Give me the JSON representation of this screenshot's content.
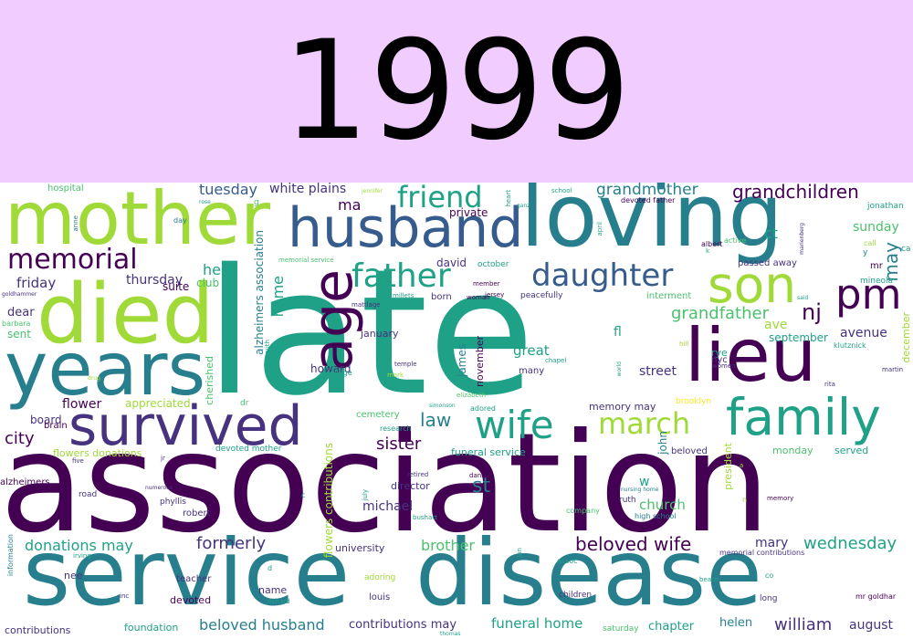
{
  "header": {
    "year": "1999",
    "background": "#f0ccff"
  },
  "cloud": {
    "colors": {
      "dark_purple": "#440154",
      "indigo": "#46327e",
      "slate_blue": "#365c8d",
      "teal_blue": "#277f8e",
      "teal": "#1fa187",
      "green": "#4ac16d",
      "yellow_green": "#a0da39",
      "yellow": "#fde725"
    },
    "words": [
      "late",
      "association",
      "service",
      "disease",
      "mother",
      "loving",
      "died",
      "years",
      "husband",
      "survived",
      "lieu",
      "family",
      "wife",
      "age",
      "son",
      "pm",
      "daughter",
      "father",
      "friend",
      "memorial",
      "march",
      "grandchildren",
      "grandmother",
      "grandfather",
      "nj",
      "st",
      "law",
      "sister",
      "city",
      "tuesday",
      "white plains",
      "held",
      "thursday",
      "friday",
      "suite",
      "club",
      "dear",
      "sent",
      "board",
      "brain",
      "flower",
      "appreciated",
      "flowers donations",
      "alzheimers",
      "donations may",
      "formerly",
      "beloved wife",
      "beloved husband",
      "contributions may",
      "funeral home",
      "brother",
      "wednesday",
      "mary",
      "william",
      "august",
      "helen",
      "chapter",
      "foundation",
      "contributions",
      "university",
      "michael",
      "church",
      "director",
      "street",
      "avenue",
      "ave",
      "september",
      "sunday",
      "ct",
      "private",
      "david",
      "october",
      "born",
      "january",
      "great",
      "many",
      "memory may",
      "fl",
      "brooklyn",
      "cemetery",
      "research",
      "funeral service",
      "beloved",
      "monday",
      "served",
      "interment",
      "devoted mother",
      "devoted father",
      "hospital",
      "home",
      "alzheimers association",
      "cherished",
      "howard",
      "james",
      "november",
      "john",
      "president",
      "flowers contributions",
      "robert",
      "phyllis",
      "road",
      "teacher",
      "nee",
      "devoted",
      "name",
      "louis",
      "children",
      "saturday",
      "high school",
      "ruth",
      "passed away",
      "memorial service",
      "nursing home",
      "adored",
      "elizabeth",
      "peacefully",
      "chapel",
      "company",
      "bushart",
      "retired",
      "daniel",
      "member",
      "jersey",
      "woman",
      "college",
      "temple",
      "mark",
      "rye",
      "nyc",
      "albert",
      "active",
      "hill",
      "women",
      "may",
      "mineola",
      "klutznick",
      "rita",
      "martin",
      "december",
      "call",
      "jonathan",
      "ca",
      "mr",
      "mr goldhar",
      "memorial contributions",
      "assoc",
      "beach",
      "co",
      "long",
      "information",
      "irving",
      "numerous",
      "five",
      "jr",
      "inc",
      "richard",
      "adoring",
      "school",
      "anne",
      "day",
      "rose",
      "goldhammer",
      "barbara",
      "drug",
      "dr",
      "south",
      "april",
      "heart",
      "ganz",
      "jennifer",
      "mattlage",
      "millets",
      "simonson",
      "thomas",
      "said",
      "world",
      "marienberg",
      "ma",
      "memory",
      "jan",
      "july",
      "w",
      "j",
      "c",
      "d",
      "g",
      "n",
      "y",
      "k",
      "a"
    ]
  }
}
